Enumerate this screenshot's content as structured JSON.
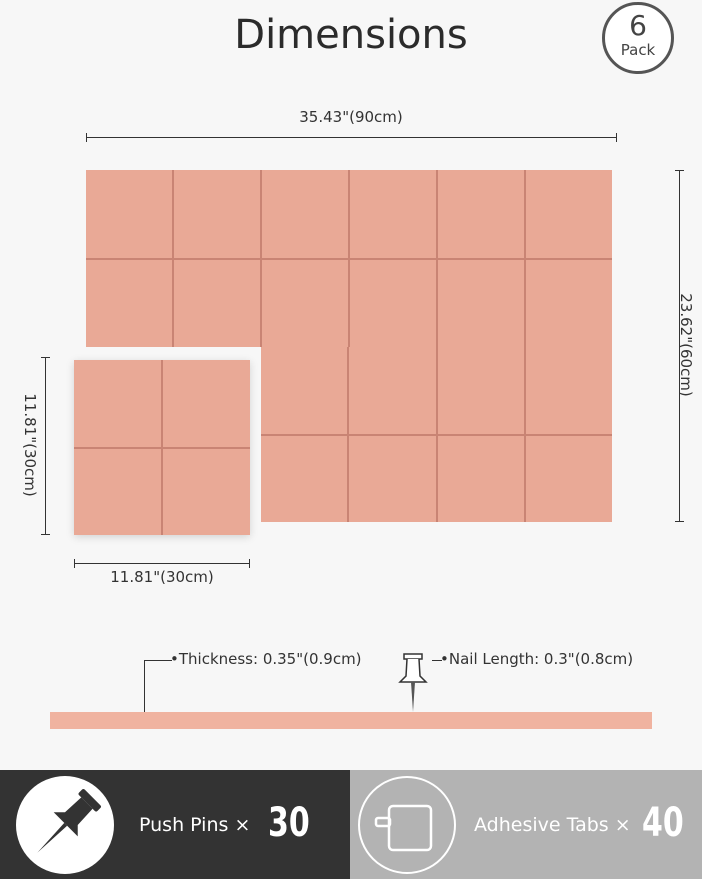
{
  "title": "Dimensions",
  "badge": {
    "number": "6",
    "label": "Pack"
  },
  "dimensions": {
    "large_width": "35.43\"(90cm)",
    "large_height": "23.62\"(60cm)",
    "small_height": "11.81\"(30cm)",
    "small_width": "11.81\"(30cm)",
    "thickness": "Thickness: 0.35\"(0.9cm)",
    "nail_length": "Nail Length: 0.3\"(0.8cm)"
  },
  "accessories": [
    {
      "label": "Push Pins ×",
      "count": "30",
      "icon": "push-pin-icon"
    },
    {
      "label": "Adhesive Tabs ×",
      "count": "40",
      "icon": "adhesive-tab-icon"
    }
  ],
  "colors": {
    "board": "#e9a996",
    "groove": "#c98474",
    "dark_bar": "#333333",
    "light_bar": "#b3b3b3"
  }
}
